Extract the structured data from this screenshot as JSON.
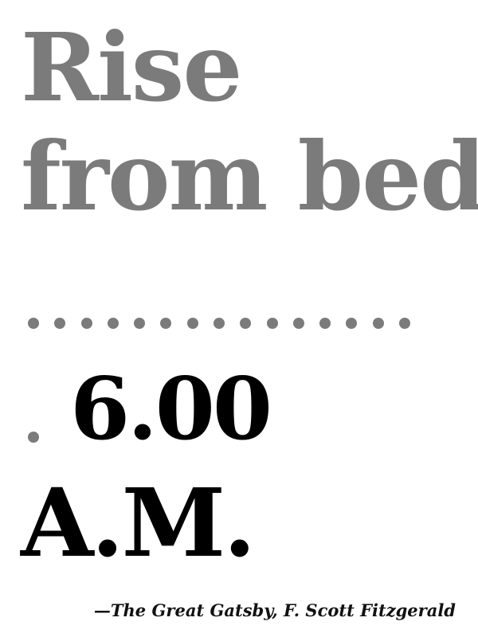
{
  "quote": {
    "line1": "Rise",
    "line2": "from bed",
    "dot_count": 15,
    "time": "6.00",
    "period": "A.M."
  },
  "attribution": "—The Great Gatsby, F. Scott Fitzgerald",
  "colors": {
    "background": "#ffffff",
    "gray_text": "#7b7b7b",
    "black_text": "#000000"
  }
}
